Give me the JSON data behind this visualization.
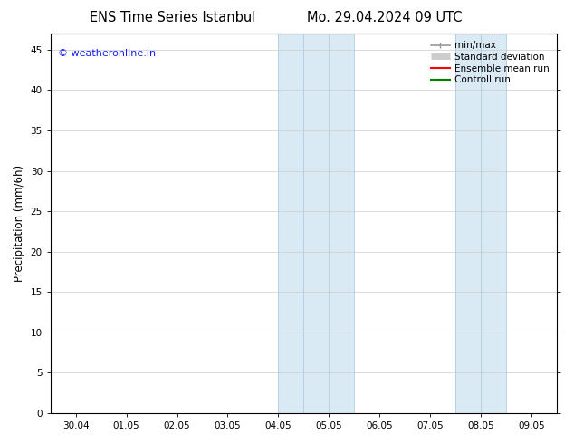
{
  "title_left": "ENS Time Series Istanbul",
  "title_right": "Mo. 29.04.2024 09 UTC",
  "ylabel": "Precipitation (mm/6h)",
  "watermark": "© weatheronline.in",
  "watermark_color": "#1a1aff",
  "xtick_labels": [
    "30.04",
    "01.05",
    "02.05",
    "03.05",
    "04.05",
    "05.05",
    "06.05",
    "07.05",
    "08.05",
    "09.05"
  ],
  "ytick_values": [
    0,
    5,
    10,
    15,
    20,
    25,
    30,
    35,
    40,
    45
  ],
  "ylim": [
    0,
    47
  ],
  "xlim": [
    -0.5,
    9.5
  ],
  "shaded_regions": [
    {
      "xmin": 4.0,
      "xmax": 4.5,
      "color": "#daeaf5"
    },
    {
      "xmin": 4.5,
      "xmax": 5.0,
      "color": "#daeaf5"
    },
    {
      "xmin": 5.0,
      "xmax": 5.5,
      "color": "#daeaf5"
    },
    {
      "xmin": 7.5,
      "xmax": 8.0,
      "color": "#daeaf5"
    },
    {
      "xmin": 8.0,
      "xmax": 8.5,
      "color": "#daeaf5"
    }
  ],
  "shaded_dividers_inner": [
    4.5,
    5.0,
    8.0
  ],
  "shaded_border_color": "#b0cce0",
  "bg_color": "#ffffff",
  "plot_bg_color": "#ffffff",
  "legend_items": [
    {
      "label": "min/max",
      "color": "#999999",
      "lw": 1.2,
      "style": "line_with_caps"
    },
    {
      "label": "Standard deviation",
      "color": "#cccccc",
      "lw": 5,
      "style": "thick"
    },
    {
      "label": "Ensemble mean run",
      "color": "#ff0000",
      "lw": 1.5,
      "style": "line"
    },
    {
      "label": "Controll run",
      "color": "#008000",
      "lw": 1.5,
      "style": "line"
    }
  ],
  "grid_color": "#cccccc",
  "tick_fontsize": 7.5,
  "title_fontsize": 10.5,
  "ylabel_fontsize": 8.5,
  "legend_fontsize": 7.5
}
